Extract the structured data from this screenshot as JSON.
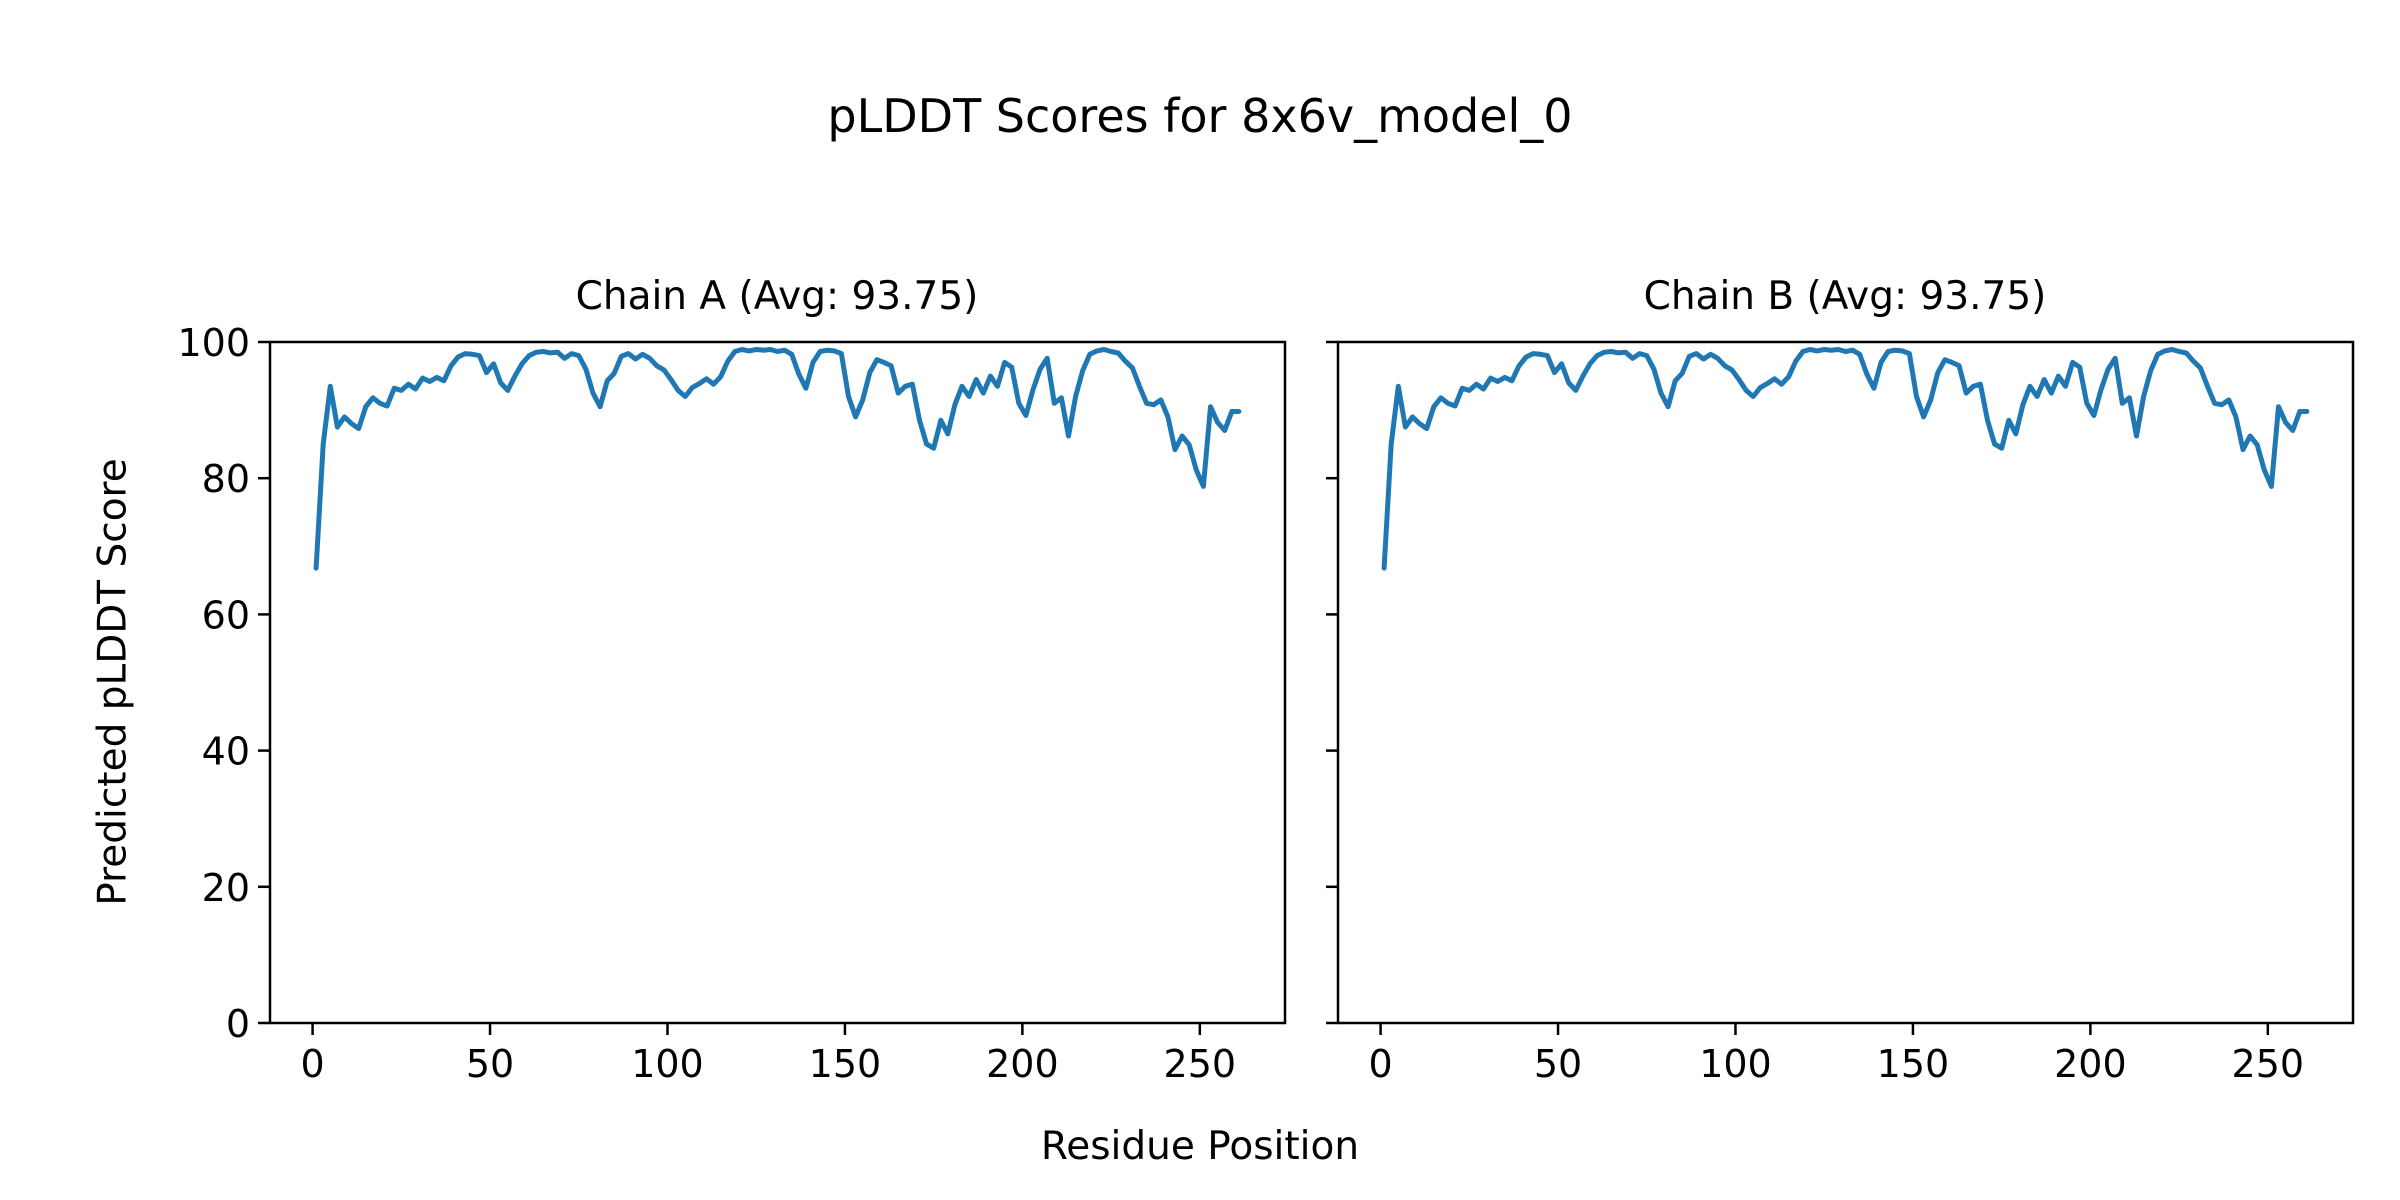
{
  "chart_data": {
    "type": "line",
    "title": "pLDDT Scores for 8x6v_model_0",
    "xlabel": "Residue Position",
    "ylabel": "Predicted pLDDT Score",
    "xlim": [
      -12,
      274
    ],
    "ylim": [
      0,
      100
    ],
    "xticks": [
      0,
      50,
      100,
      150,
      200,
      250
    ],
    "yticks": [
      0,
      20,
      40,
      60,
      80,
      100
    ],
    "grid": false,
    "legend": "none",
    "line_color": "#1f77b4",
    "axis_color": "#000000",
    "x": [
      1,
      3,
      5,
      7,
      9,
      11,
      13,
      15,
      17,
      19,
      21,
      23,
      25,
      27,
      29,
      31,
      33,
      35,
      37,
      39,
      41,
      43,
      45,
      47,
      49,
      51,
      53,
      55,
      57,
      59,
      61,
      63,
      65,
      67,
      69,
      71,
      73,
      75,
      77,
      79,
      81,
      83,
      85,
      87,
      89,
      91,
      93,
      95,
      97,
      99,
      101,
      103,
      105,
      107,
      109,
      111,
      113,
      115,
      117,
      119,
      121,
      123,
      125,
      127,
      129,
      131,
      133,
      135,
      137,
      139,
      141,
      143,
      145,
      147,
      149,
      151,
      153,
      155,
      157,
      159,
      161,
      163,
      165,
      167,
      169,
      171,
      173,
      175,
      177,
      179,
      181,
      183,
      185,
      187,
      189,
      191,
      193,
      195,
      197,
      199,
      201,
      203,
      205,
      207,
      209,
      211,
      213,
      215,
      217,
      219,
      221,
      223,
      225,
      227,
      229,
      231,
      233,
      235,
      237,
      239,
      241,
      243,
      245,
      247,
      249,
      251,
      253,
      255,
      257,
      259,
      261
    ],
    "series": [
      {
        "name": "Chain A (Avg: 93.75)",
        "chain": "A",
        "avg": 93.75,
        "values": [
          66.8,
          85.0,
          93.5,
          87.5,
          89.0,
          88.0,
          87.3,
          90.5,
          91.8,
          91.0,
          90.6,
          93.2,
          92.9,
          93.8,
          93.1,
          94.7,
          94.2,
          94.8,
          94.3,
          96.5,
          97.8,
          98.3,
          98.2,
          98.0,
          95.5,
          96.8,
          94.0,
          92.9,
          95.0,
          96.8,
          98.0,
          98.5,
          98.6,
          98.4,
          98.5,
          97.6,
          98.3,
          98.0,
          96.0,
          92.5,
          90.5,
          94.3,
          95.4,
          97.9,
          98.3,
          97.5,
          98.2,
          97.6,
          96.5,
          95.9,
          94.5,
          92.9,
          92.0,
          93.3,
          93.9,
          94.6,
          93.8,
          94.9,
          97.2,
          98.6,
          98.9,
          98.7,
          98.9,
          98.8,
          98.9,
          98.6,
          98.8,
          98.2,
          95.3,
          93.2,
          97.0,
          98.6,
          98.8,
          98.7,
          98.3,
          92.0,
          89.0,
          91.5,
          95.5,
          97.4,
          97.0,
          96.5,
          92.5,
          93.5,
          93.8,
          88.5,
          85.0,
          84.4,
          88.5,
          86.5,
          90.8,
          93.5,
          92.0,
          94.5,
          92.5,
          95.0,
          93.5,
          97.0,
          96.3,
          91.0,
          89.2,
          93.0,
          96.0,
          97.6,
          91.0,
          91.8,
          86.2,
          92.0,
          95.8,
          98.2,
          98.7,
          98.9,
          98.6,
          98.4,
          97.2,
          96.2,
          93.5,
          91.0,
          90.8,
          91.5,
          89.0,
          84.2,
          86.2,
          84.9,
          81.2,
          78.8,
          90.5,
          88.2,
          87.0,
          89.8,
          89.8
        ]
      },
      {
        "name": "Chain B (Avg: 93.75)",
        "chain": "B",
        "avg": 93.75,
        "values": [
          66.8,
          85.0,
          93.5,
          87.5,
          89.0,
          88.0,
          87.3,
          90.5,
          91.8,
          91.0,
          90.6,
          93.2,
          92.9,
          93.8,
          93.1,
          94.7,
          94.2,
          94.8,
          94.3,
          96.5,
          97.8,
          98.3,
          98.2,
          98.0,
          95.5,
          96.8,
          94.0,
          92.9,
          95.0,
          96.8,
          98.0,
          98.5,
          98.6,
          98.4,
          98.5,
          97.6,
          98.3,
          98.0,
          96.0,
          92.5,
          90.5,
          94.3,
          95.4,
          97.9,
          98.3,
          97.5,
          98.2,
          97.6,
          96.5,
          95.9,
          94.5,
          92.9,
          92.0,
          93.3,
          93.9,
          94.6,
          93.8,
          94.9,
          97.2,
          98.6,
          98.9,
          98.7,
          98.9,
          98.8,
          98.9,
          98.6,
          98.8,
          98.2,
          95.3,
          93.2,
          97.0,
          98.6,
          98.8,
          98.7,
          98.3,
          92.0,
          89.0,
          91.5,
          95.5,
          97.4,
          97.0,
          96.5,
          92.5,
          93.5,
          93.8,
          88.5,
          85.0,
          84.4,
          88.5,
          86.5,
          90.8,
          93.5,
          92.0,
          94.5,
          92.5,
          95.0,
          93.5,
          97.0,
          96.3,
          91.0,
          89.2,
          93.0,
          96.0,
          97.6,
          91.0,
          91.8,
          86.2,
          92.0,
          95.8,
          98.2,
          98.7,
          98.9,
          98.6,
          98.4,
          97.2,
          96.2,
          93.5,
          91.0,
          90.8,
          91.5,
          89.0,
          84.2,
          86.2,
          84.9,
          81.2,
          78.8,
          90.5,
          88.2,
          87.0,
          89.8,
          89.8
        ]
      }
    ]
  }
}
